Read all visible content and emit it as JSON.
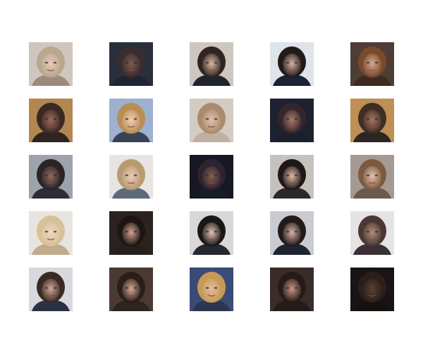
{
  "figure": {
    "rows": 5,
    "cols": 5,
    "tiles": [
      {
        "bg": "#cfc6bd",
        "hair": "#b9a88f",
        "skin": "#e8c8b4",
        "top": "#9a8b7d"
      },
      {
        "bg": "#2a2f3c",
        "hair": "#3a2c31",
        "skin": "#7b5b4a",
        "top": "#1f2533"
      },
      {
        "bg": "#cdc7bf",
        "hair": "#2f2522",
        "skin": "#d8b7a1",
        "top": "#20242c"
      },
      {
        "bg": "#dfe3ea",
        "hair": "#231b1a",
        "skin": "#d6b1a1",
        "top": "#1b2233"
      },
      {
        "bg": "#4d3d35",
        "hair": "#7a4a2d",
        "skin": "#d6a78d",
        "top": "#3d2b22"
      },
      {
        "bg": "#b3874f",
        "hair": "#3a2a23",
        "skin": "#9b6c57",
        "top": "#2e2320"
      },
      {
        "bg": "#9fb0d0",
        "hair": "#b88f52",
        "skin": "#f0cdb3",
        "top": "#3a4356"
      },
      {
        "bg": "#d4cbc2",
        "hair": "#a98b6d",
        "skin": "#e2c0ab",
        "top": "#c1b0a0"
      },
      {
        "bg": "#1e2230",
        "hair": "#33262c",
        "skin": "#a77a66",
        "top": "#1b1f2b"
      },
      {
        "bg": "#bf8f55",
        "hair": "#3f2e25",
        "skin": "#a67662",
        "top": "#2c2522"
      },
      {
        "bg": "#9da2ad",
        "hair": "#2a2428",
        "skin": "#8e6a5c",
        "top": "#2b2e37"
      },
      {
        "bg": "#e7e5e3",
        "hair": "#b89b71",
        "skin": "#e9cab9",
        "top": "#5c6a7a"
      },
      {
        "bg": "#161823",
        "hair": "#2e2330",
        "skin": "#825f4f",
        "top": "#171b25"
      },
      {
        "bg": "#c5c1bd",
        "hair": "#1e1817",
        "skin": "#e0b9a4",
        "top": "#2c2728"
      },
      {
        "bg": "#a59a93",
        "hair": "#7c5a3f",
        "skin": "#e3c1ab",
        "top": "#6b5a4c"
      },
      {
        "bg": "#e8e4df",
        "hair": "#d6c296",
        "skin": "#f1d3c1",
        "top": "#c0ab8d"
      },
      {
        "bg": "#2a2320",
        "hair": "#1c1512",
        "skin": "#d2a38e",
        "top": "#24201e"
      },
      {
        "bg": "#d9d8d8",
        "hair": "#1b1716",
        "skin": "#e0c2b3",
        "top": "#252830"
      },
      {
        "bg": "#c9cbd0",
        "hair": "#221b1a",
        "skin": "#d4b2a2",
        "top": "#1f2431"
      },
      {
        "bg": "#e5e4e5",
        "hair": "#4a3833",
        "skin": "#b08b7c",
        "top": "#3a3035"
      },
      {
        "bg": "#d7d9df",
        "hair": "#3b2a24",
        "skin": "#cfa999",
        "top": "#2a3344"
      },
      {
        "bg": "#4a3a33",
        "hair": "#2a1e19",
        "skin": "#d7ab95",
        "top": "#2b2421"
      },
      {
        "bg": "#3b4b78",
        "hair": "#c69a56",
        "skin": "#e4bb9d",
        "top": "#2c3552"
      },
      {
        "bg": "#3a2d29",
        "hair": "#261b17",
        "skin": "#c79882",
        "top": "#231c1a"
      },
      {
        "bg": "#1a1514",
        "hair": "#2a1f1a",
        "skin": "#5a4034",
        "top": "#15110f"
      }
    ]
  }
}
